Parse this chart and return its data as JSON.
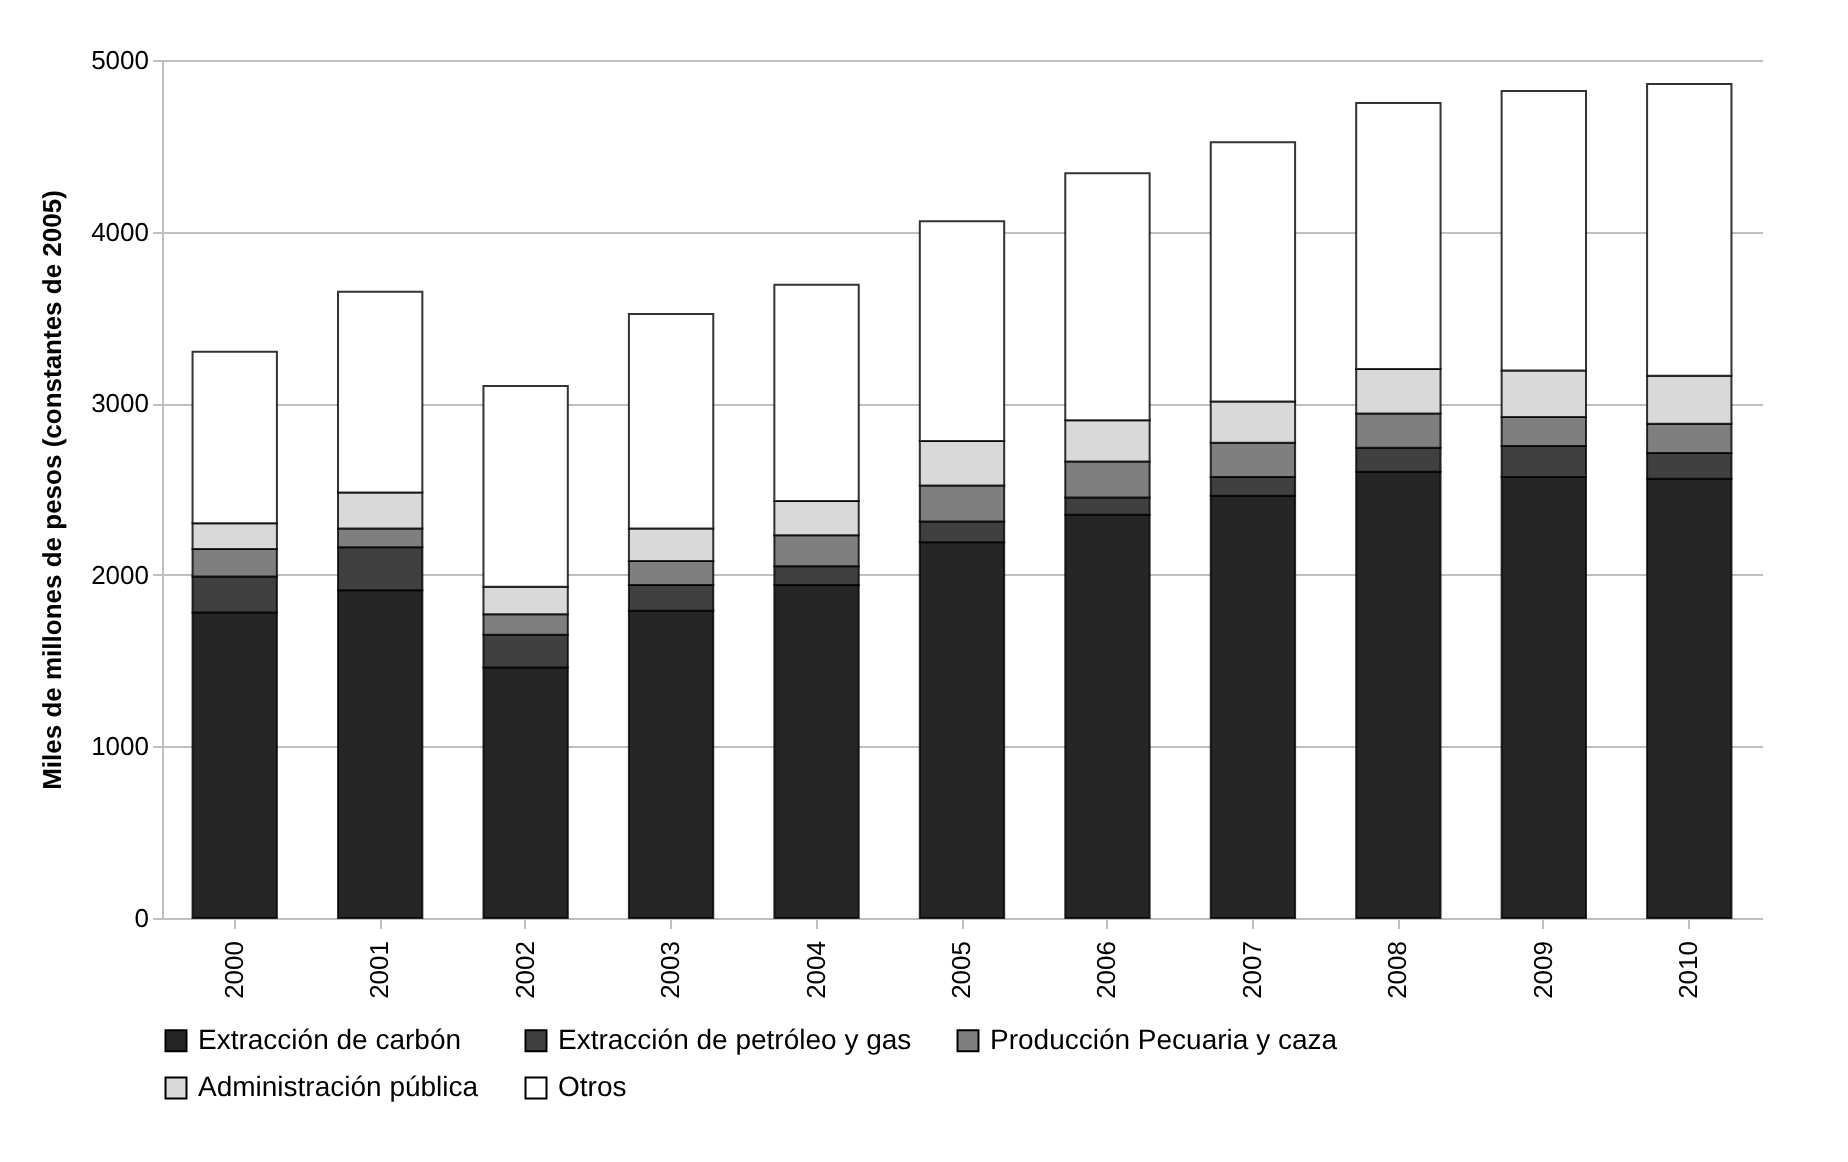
{
  "chart_data": {
    "type": "bar",
    "stacked": true,
    "ylabel": "Miles de millones de pesos (constantes de 2005)",
    "categories": [
      "2000",
      "2001",
      "2002",
      "2003",
      "2004",
      "2005",
      "2006",
      "2007",
      "2008",
      "2009",
      "2010"
    ],
    "series": [
      {
        "name": "Extracción de carbón",
        "color": "#262626",
        "values": [
          1780,
          1910,
          1460,
          1790,
          1940,
          2190,
          2350,
          2460,
          2600,
          2570,
          2560
        ]
      },
      {
        "name": "Extracción de petróleo y gas",
        "color": "#404040",
        "values": [
          210,
          250,
          190,
          150,
          110,
          120,
          100,
          110,
          140,
          180,
          150
        ]
      },
      {
        "name": "Producción Pecuaria y caza",
        "color": "#7f7f7f",
        "values": [
          160,
          110,
          120,
          140,
          180,
          210,
          210,
          200,
          200,
          170,
          170
        ]
      },
      {
        "name": "Administración pública",
        "color": "#d9d9d9",
        "values": [
          150,
          210,
          160,
          190,
          200,
          260,
          240,
          240,
          260,
          270,
          280
        ]
      },
      {
        "name": "Otros",
        "color": "#ffffff",
        "values": [
          1000,
          1170,
          1170,
          1250,
          1260,
          1280,
          1440,
          1510,
          1550,
          1630,
          1700
        ]
      }
    ],
    "ylim": [
      0,
      5000
    ],
    "yticks": [
      0,
      1000,
      2000,
      3000,
      4000,
      5000
    ],
    "grid": "y",
    "legend": "bottom"
  }
}
